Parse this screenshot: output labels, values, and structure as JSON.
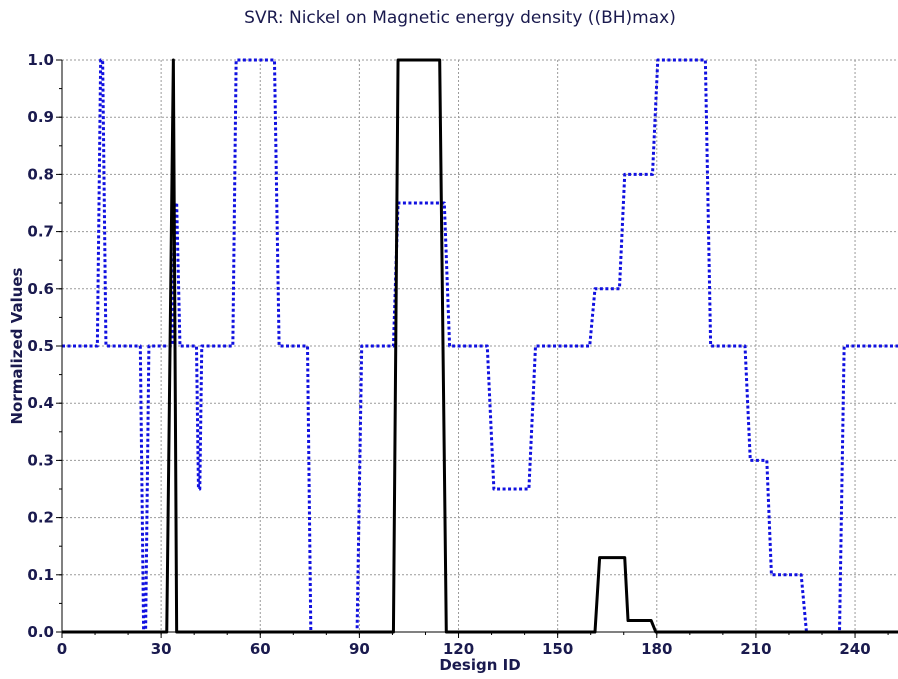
{
  "chart_data": {
    "type": "line",
    "title": "SVR: Nickel on Magnetic energy density ((BH)max)",
    "xlabel": "Design ID",
    "ylabel": "Normalized Values",
    "xlim": [
      0,
      253
    ],
    "ylim": [
      0,
      1.0
    ],
    "x_ticks": [
      0,
      30,
      60,
      90,
      120,
      150,
      180,
      210,
      240
    ],
    "y_ticks": [
      0.0,
      0.1,
      0.2,
      0.3,
      0.4,
      0.5,
      0.6,
      0.7,
      0.8,
      0.9,
      1.0
    ],
    "x_tick_labels": [
      "0",
      "30",
      "60",
      "90",
      "120",
      "150",
      "180",
      "210",
      "240"
    ],
    "y_tick_labels": [
      "0.0",
      "0.1",
      "0.2",
      "0.3",
      "0.4",
      "0.5",
      "0.6",
      "0.7",
      "0.8",
      "0.9",
      "1.0"
    ],
    "grid": true,
    "legend": "none",
    "series": [
      {
        "color": "#1010e0",
        "style": "dotted",
        "points": [
          [
            0,
            0.5
          ],
          [
            10.7,
            0.5
          ],
          [
            11.7,
            1.0
          ],
          [
            12.3,
            1.0
          ],
          [
            13.3,
            0.5
          ],
          [
            23.7,
            0.5
          ],
          [
            24.7,
            0.0
          ],
          [
            25.3,
            0.0
          ],
          [
            26.3,
            0.5
          ],
          [
            33.3,
            0.5
          ],
          [
            34.3,
            0.75
          ],
          [
            34.7,
            0.75
          ],
          [
            35.7,
            0.5
          ],
          [
            40.7,
            0.5
          ],
          [
            41.3,
            0.25
          ],
          [
            41.7,
            0.25
          ],
          [
            42.3,
            0.5
          ],
          [
            51.7,
            0.5
          ],
          [
            52.7,
            1.0
          ],
          [
            64.3,
            1.0
          ],
          [
            65.7,
            0.5
          ],
          [
            74.3,
            0.5
          ],
          [
            75.3,
            0.0
          ],
          [
            89.3,
            0.0
          ],
          [
            90.7,
            0.5
          ],
          [
            100.3,
            0.5
          ],
          [
            101.7,
            0.75
          ],
          [
            115.7,
            0.75
          ],
          [
            117.3,
            0.5
          ],
          [
            128.7,
            0.5
          ],
          [
            130.7,
            0.25
          ],
          [
            141.3,
            0.25
          ],
          [
            143.3,
            0.5
          ],
          [
            159.7,
            0.5
          ],
          [
            161.3,
            0.6
          ],
          [
            168.7,
            0.6
          ],
          [
            170.3,
            0.8
          ],
          [
            178.7,
            0.8
          ],
          [
            180.3,
            1.0
          ],
          [
            194.7,
            1.0
          ],
          [
            196.3,
            0.5
          ],
          [
            206.7,
            0.5
          ],
          [
            208.3,
            0.3
          ],
          [
            213.3,
            0.3
          ],
          [
            214.7,
            0.1
          ],
          [
            223.7,
            0.1
          ],
          [
            225.3,
            0.0
          ],
          [
            235.3,
            0.0
          ],
          [
            236.7,
            0.5
          ],
          [
            253,
            0.5
          ]
        ]
      },
      {
        "color": "#000000",
        "style": "solid",
        "points": [
          [
            0,
            0.0
          ],
          [
            31.7,
            0.0
          ],
          [
            33.7,
            1.0
          ],
          [
            34.7,
            0.0
          ],
          [
            100.3,
            0.0
          ],
          [
            101.7,
            1.0
          ],
          [
            114.3,
            1.0
          ],
          [
            116.3,
            0.0
          ],
          [
            161.3,
            0.0
          ],
          [
            162.7,
            0.13
          ],
          [
            170.3,
            0.13
          ],
          [
            171.3,
            0.02
          ],
          [
            178.3,
            0.02
          ],
          [
            179.7,
            0.0
          ],
          [
            253,
            0.0
          ]
        ]
      }
    ]
  }
}
